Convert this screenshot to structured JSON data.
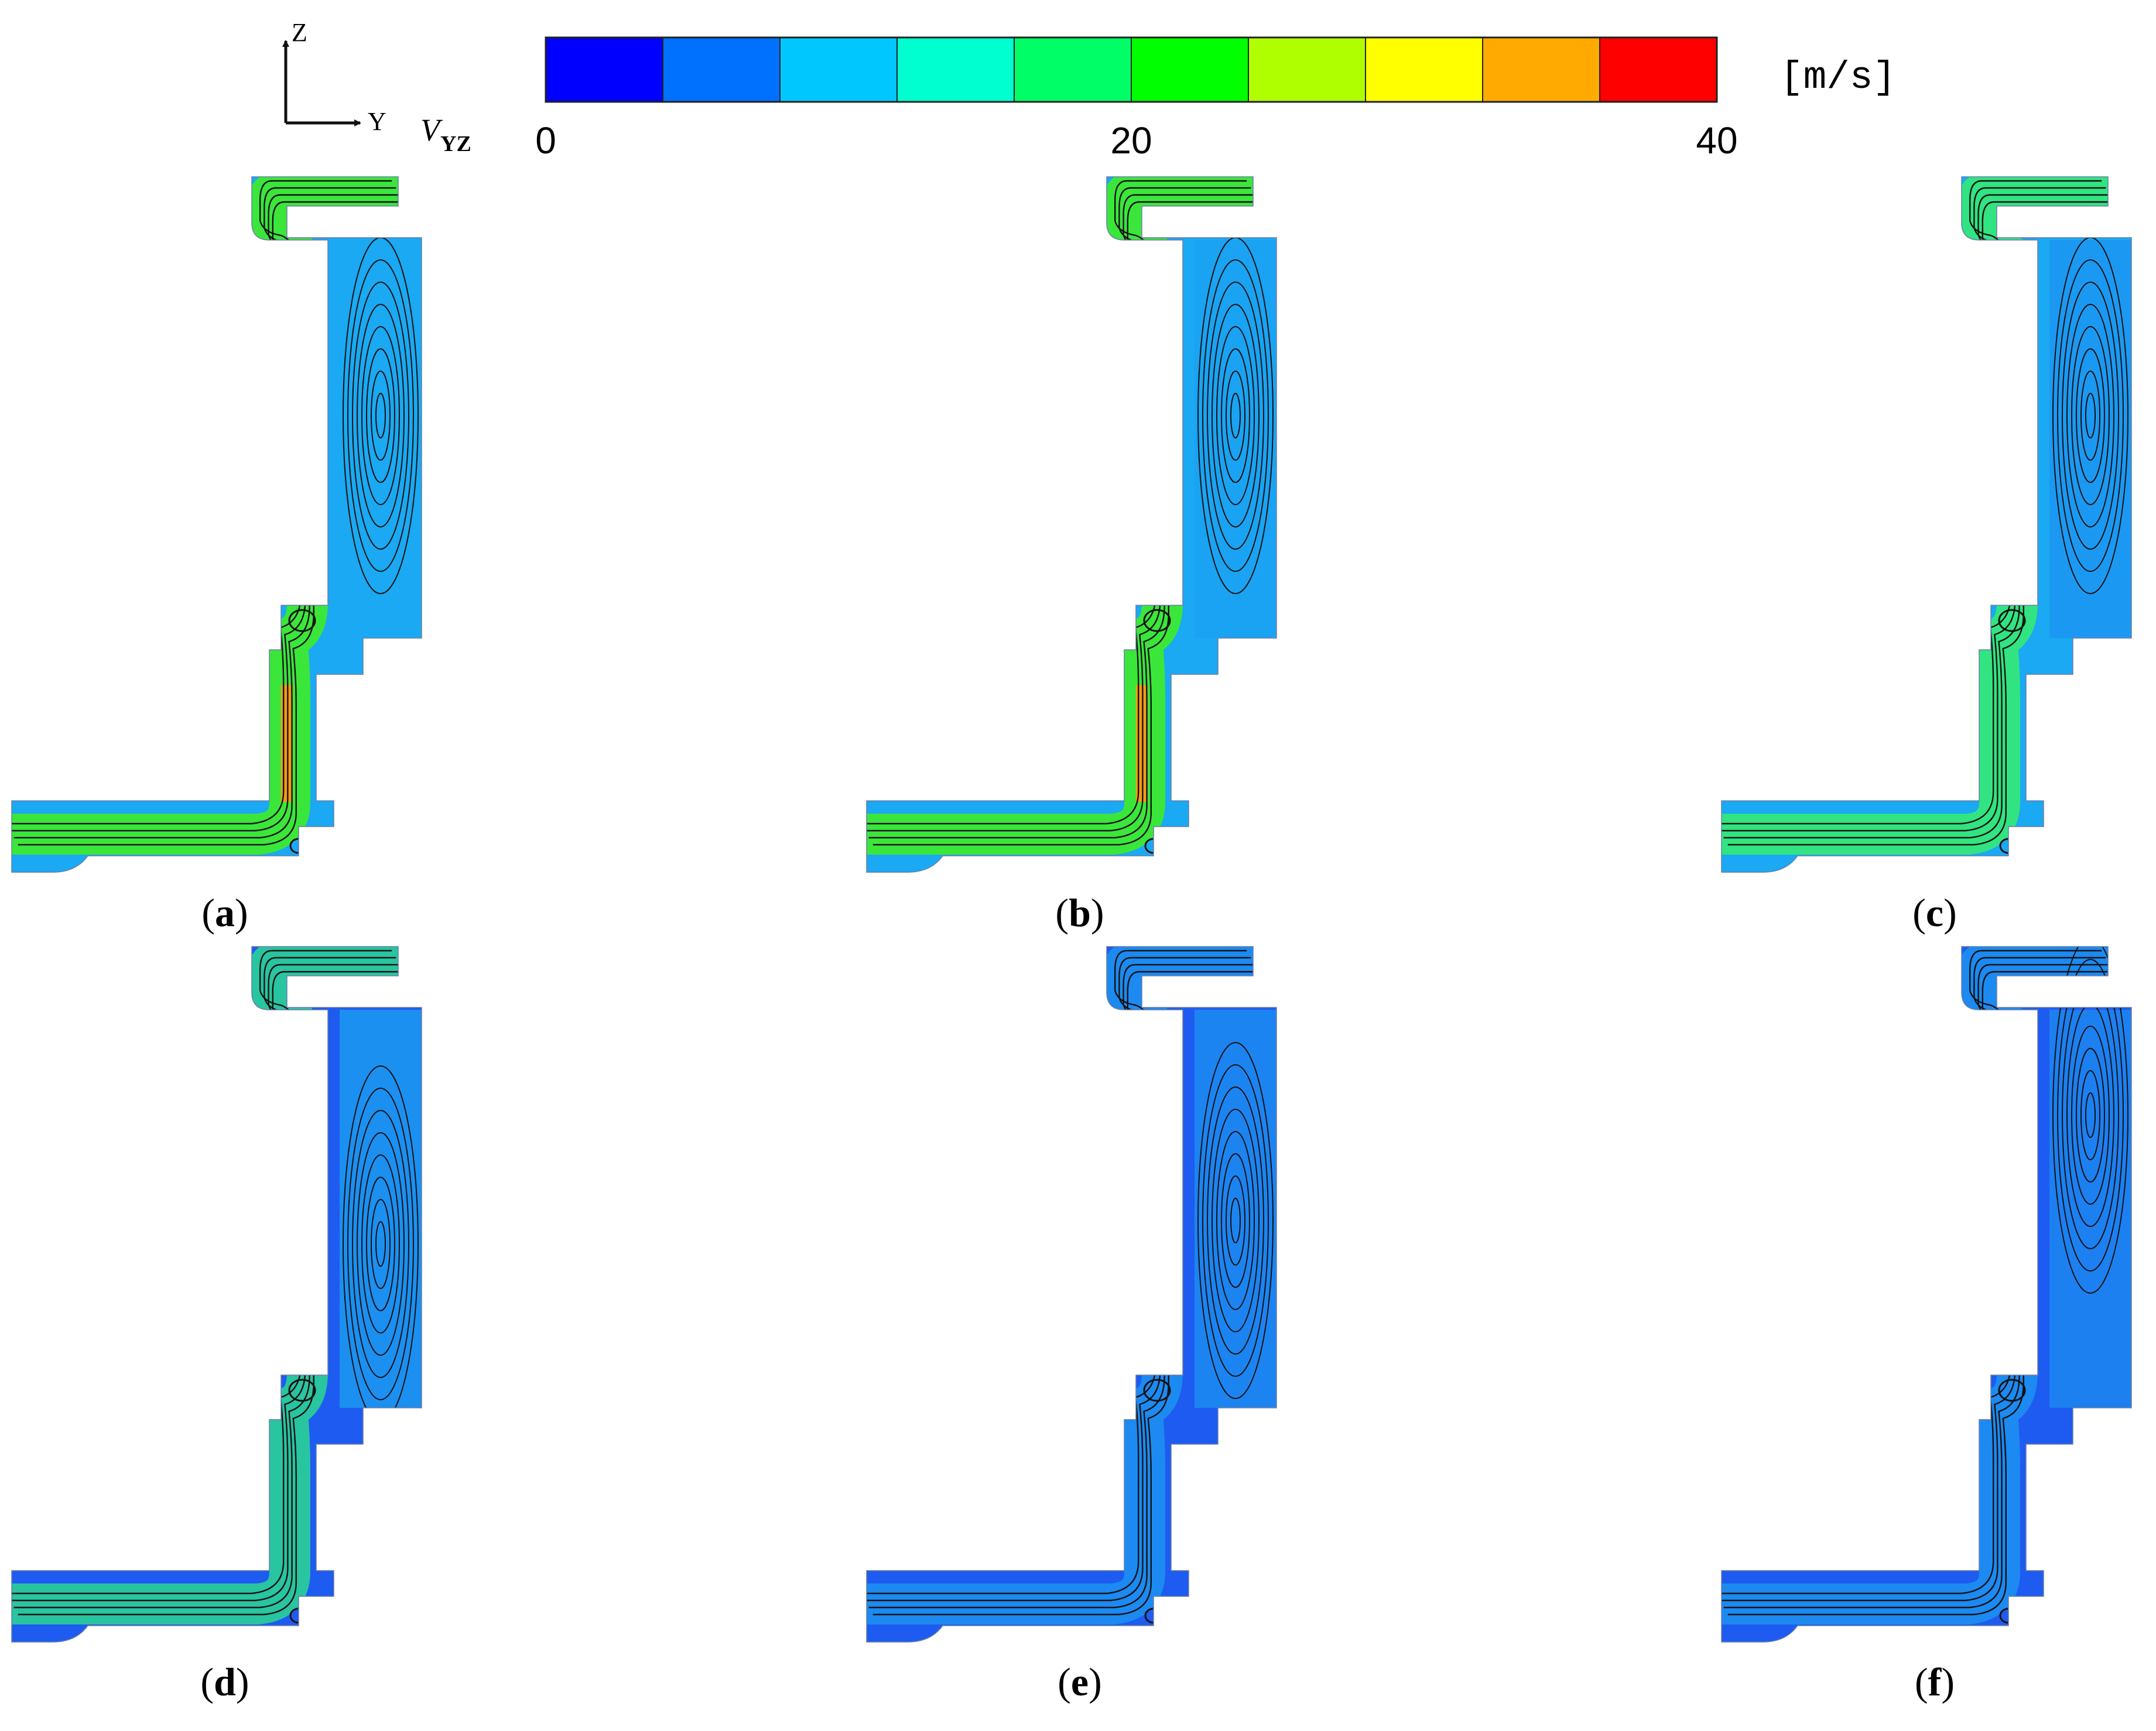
{
  "axes": {
    "z": "Z",
    "y": "Y"
  },
  "variable": {
    "symbol": "V",
    "subscript": "YZ"
  },
  "colorbar": {
    "unit": "[m/s]",
    "min": 0,
    "max": 40,
    "bands": 10,
    "tick_labels": [
      "0",
      "20",
      "40"
    ],
    "tick_values": [
      0,
      20,
      40
    ],
    "colors": [
      "#0000ff",
      "#0070ff",
      "#00c8ff",
      "#00ffd0",
      "#00ff66",
      "#00ff00",
      "#b0ff00",
      "#ffff00",
      "#ffaa00",
      "#ff0000"
    ]
  },
  "panels": [
    {
      "letter": "a",
      "intensity": 0.72
    },
    {
      "letter": "b",
      "intensity": 0.62
    },
    {
      "letter": "c",
      "intensity": 0.5
    },
    {
      "letter": "d",
      "intensity": 0.38
    },
    {
      "letter": "e",
      "intensity": 0.22
    },
    {
      "letter": "f",
      "intensity": 0.18
    }
  ],
  "palette": {
    "deep_blue": "#1e5bf0",
    "sky": "#1aa9f2",
    "cyan": "#22e2ea",
    "green": "#3be63b",
    "yellow": "#e9e51d",
    "orange": "#f59a16",
    "streamline": "#111111"
  }
}
